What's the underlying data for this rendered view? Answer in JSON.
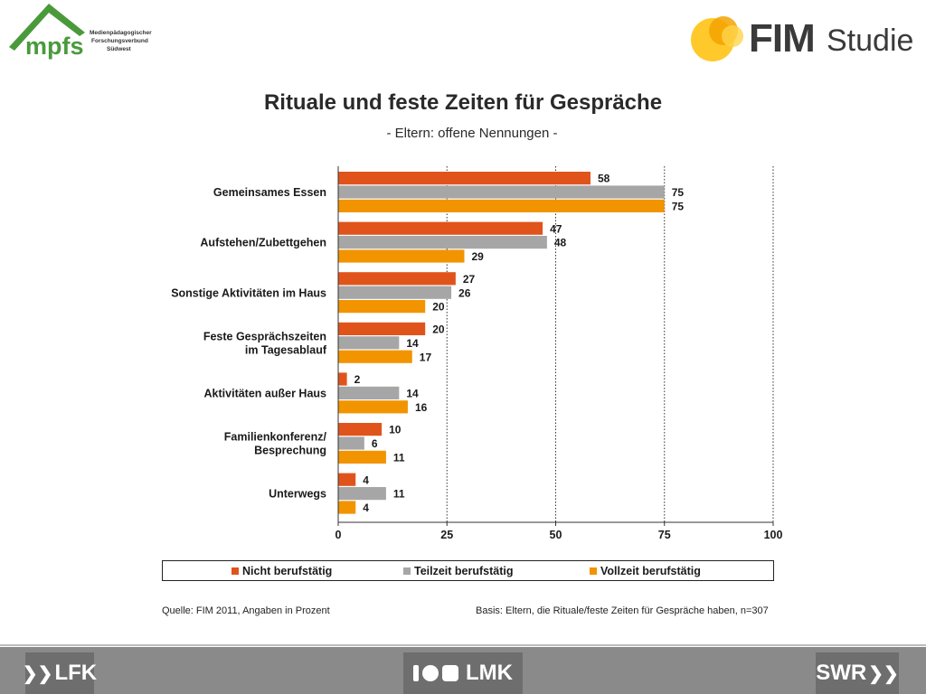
{
  "header": {
    "mpfs_logo_text": "mpfs",
    "mpfs_caption": [
      "Medienpädagogischer",
      "Forschungsverbund",
      "Südwest"
    ],
    "fim_logo_text": "FIM",
    "studie_text": "Studie"
  },
  "title": "Rituale und feste Zeiten für Gespräche",
  "subtitle": "- Eltern: offene Nennungen -",
  "chart_data": {
    "type": "bar",
    "orientation": "horizontal",
    "categories": [
      [
        "Gemeinsames Essen"
      ],
      [
        "Aufstehen/Zubettgehen"
      ],
      [
        "Sonstige Aktivitäten  im Haus"
      ],
      [
        "Feste Gesprächszeiten",
        "im Tagesablauf"
      ],
      [
        "Aktivitäten  außer Haus"
      ],
      [
        "Familienkonferenz/",
        "Besprechung"
      ],
      [
        "Unterwegs"
      ]
    ],
    "series": [
      {
        "name": "Nicht berufstätig",
        "color": "#e0541c",
        "values": [
          58,
          47,
          27,
          20,
          2,
          10,
          4
        ]
      },
      {
        "name": "Teilzeit berufstätig",
        "color": "#a6a6a6",
        "values": [
          75,
          48,
          26,
          14,
          14,
          6,
          11
        ]
      },
      {
        "name": "Vollzeit berufstätig",
        "color": "#f29400",
        "values": [
          75,
          29,
          20,
          17,
          16,
          11,
          4
        ]
      }
    ],
    "xlim": [
      0,
      100
    ],
    "xticks": [
      "0",
      "25",
      "50",
      "75",
      "100"
    ],
    "grid": "vertical-dotted",
    "legend_position": "bottom"
  },
  "footer": {
    "source": "Quelle: FIM 2011,  Angaben in Prozent",
    "basis": "Basis: Eltern, die Rituale/feste Zeiten für Gespräche haben, n=307"
  },
  "sponsors": {
    "lfk": "LFK",
    "lmk": "LMK",
    "swr": "SWR"
  },
  "colors": {
    "fim_orange": "#f5a300",
    "fim_yellow": "#ffc92b",
    "mpfs_green": "#4a9a3c"
  }
}
